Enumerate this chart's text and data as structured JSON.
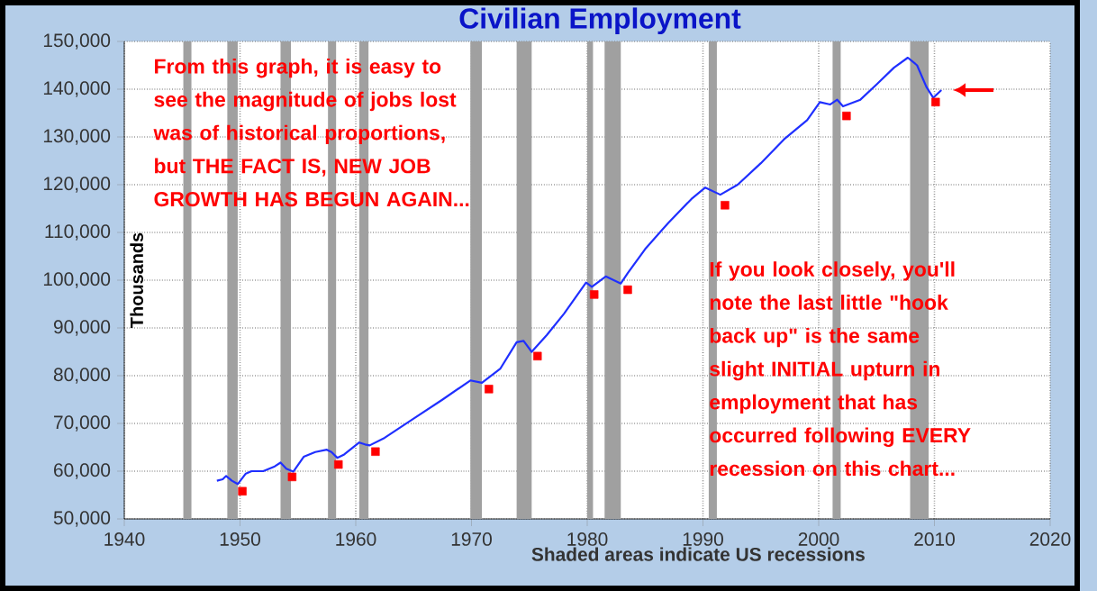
{
  "chart_data": {
    "type": "line",
    "title": "Civilian Employment",
    "xlabel": "Shaded areas indicate US recessions",
    "ylabel": "Thousands",
    "xlim": [
      1940,
      2020
    ],
    "xticks": [
      1940,
      1950,
      1960,
      1970,
      1980,
      1990,
      2000,
      2010,
      2020
    ],
    "ylim": [
      50000,
      150000
    ],
    "yticks": [
      {
        "value": 50000,
        "label": "50,000"
      },
      {
        "value": 60000,
        "label": "60,000"
      },
      {
        "value": 70000,
        "label": "70,000"
      },
      {
        "value": 80000,
        "label": "80,000"
      },
      {
        "value": 90000,
        "label": "90,000"
      },
      {
        "value": 100000,
        "label": "100,000"
      },
      {
        "value": 110000,
        "label": "110,000"
      },
      {
        "value": 120000,
        "label": "120,000"
      },
      {
        "value": 130000,
        "label": "130,000"
      },
      {
        "value": 140000,
        "label": "140,000"
      },
      {
        "value": 150000,
        "label": "150,000"
      }
    ],
    "grid": true,
    "line_style": "solid",
    "series": [
      {
        "color": "#1f2fff",
        "marker": "none",
        "x": [
          1948.0,
          1948.5,
          1948.8,
          1949.3,
          1949.8,
          1950.5,
          1951.0,
          1952.0,
          1953.0,
          1953.5,
          1954.0,
          1954.6,
          1955.5,
          1956.5,
          1957.5,
          1957.9,
          1958.4,
          1959.0,
          1960.3,
          1960.8,
          1961.2,
          1962.5,
          1965.0,
          1967.5,
          1969.9,
          1970.9,
          1972.5,
          1973.9,
          1974.5,
          1975.2,
          1976.5,
          1978.0,
          1979.9,
          1980.4,
          1981.6,
          1982.9,
          1983.5,
          1985.0,
          1987.0,
          1989.0,
          1990.2,
          1991.5,
          1993.0,
          1995.0,
          1997.0,
          1999.0,
          2000.1,
          2001.0,
          2001.6,
          2002.1,
          2003.6,
          2005.0,
          2006.5,
          2007.7,
          2008.5,
          2009.3,
          2009.9,
          2010.6
        ],
        "values": [
          58000,
          58300,
          59000,
          58000,
          57300,
          59500,
          60000,
          60000,
          61000,
          61800,
          60500,
          59900,
          63000,
          64000,
          64500,
          64000,
          62800,
          63500,
          66000,
          65600,
          65400,
          67000,
          71000,
          75000,
          79000,
          78500,
          81500,
          87000,
          87300,
          85000,
          88500,
          93000,
          99500,
          98600,
          100800,
          99300,
          101500,
          106500,
          112000,
          117000,
          119400,
          117900,
          120000,
          124500,
          129500,
          133500,
          137300,
          136800,
          137800,
          136400,
          137800,
          141000,
          144500,
          146600,
          145000,
          140500,
          138200,
          139800
        ]
      },
      {
        "type": "scatter",
        "color": "#ff0000",
        "marker": "square",
        "x": [
          1950.2,
          1954.5,
          1958.5,
          1961.7,
          1971.5,
          1975.7,
          1980.6,
          1983.5,
          1991.9,
          2002.4,
          2010.1
        ],
        "values": [
          55800,
          58800,
          61400,
          64100,
          77200,
          84100,
          97000,
          98000,
          115700,
          134400,
          137300
        ]
      }
    ],
    "bands": [
      {
        "axis": "x",
        "from": 1945.1,
        "to": 1945.8,
        "color": "#a0a0a0"
      },
      {
        "axis": "x",
        "from": 1948.9,
        "to": 1949.8,
        "color": "#a0a0a0"
      },
      {
        "axis": "x",
        "from": 1953.5,
        "to": 1954.4,
        "color": "#a0a0a0"
      },
      {
        "axis": "x",
        "from": 1957.6,
        "to": 1958.3,
        "color": "#a0a0a0"
      },
      {
        "axis": "x",
        "from": 1960.3,
        "to": 1961.1,
        "color": "#a0a0a0"
      },
      {
        "axis": "x",
        "from": 1969.9,
        "to": 1970.9,
        "color": "#a0a0a0"
      },
      {
        "axis": "x",
        "from": 1973.9,
        "to": 1975.2,
        "color": "#a0a0a0"
      },
      {
        "axis": "x",
        "from": 1980.0,
        "to": 1980.5,
        "color": "#a0a0a0"
      },
      {
        "axis": "x",
        "from": 1981.5,
        "to": 1982.9,
        "color": "#a0a0a0"
      },
      {
        "axis": "x",
        "from": 1990.5,
        "to": 1991.2,
        "color": "#a0a0a0"
      },
      {
        "axis": "x",
        "from": 2001.2,
        "to": 2001.9,
        "color": "#a0a0a0"
      },
      {
        "axis": "x",
        "from": 2007.9,
        "to": 2009.5,
        "color": "#a0a0a0"
      }
    ],
    "annotations": [
      "From this graph, it is easy to see the magnitude of jobs lost was of historical proportions, but **THE FACT IS, NEW JOB GROWTH HAS BEGUN AGAIN...**",
      "If you look closely, you'll note the last little \"hook back up\" is the same slight **INITIAL** upturn in employment that has occurred following **EVERY** recession on this chart..."
    ]
  }
}
